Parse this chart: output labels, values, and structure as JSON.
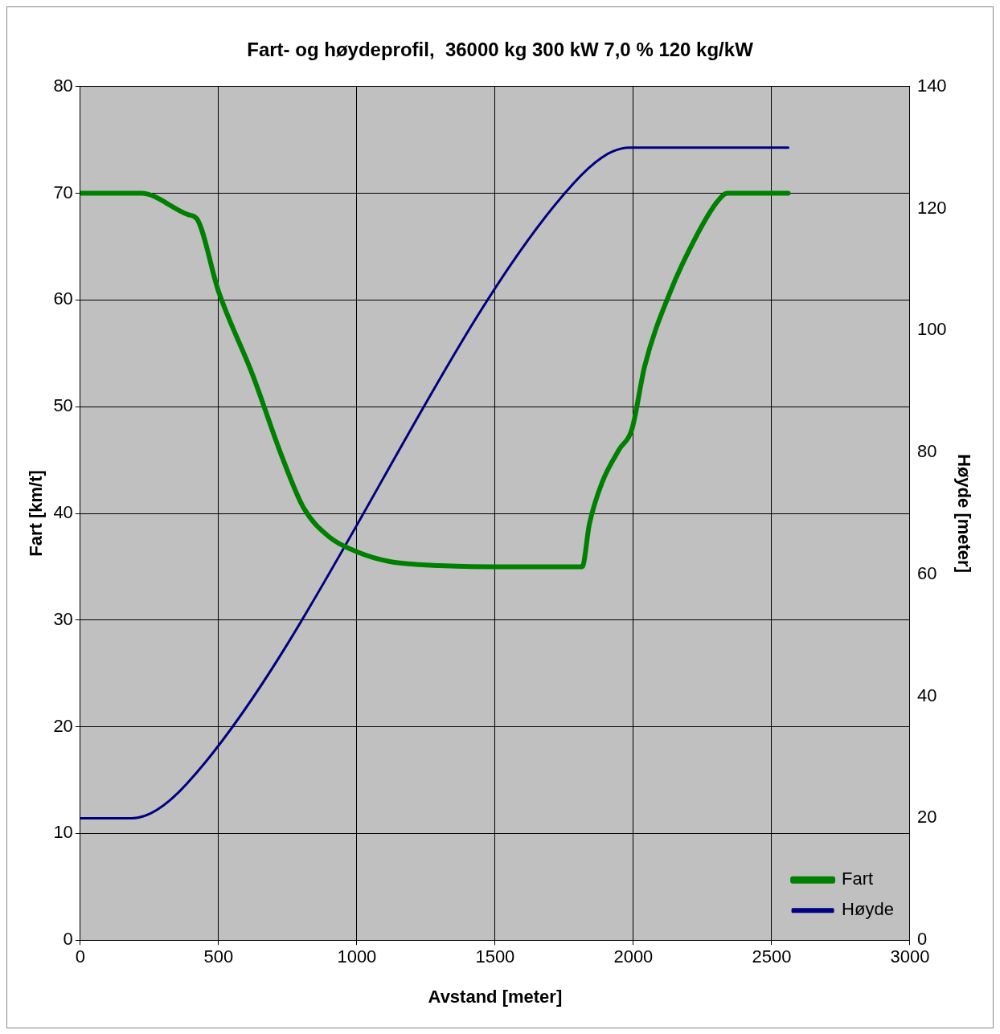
{
  "chart_data": {
    "type": "line",
    "title": "Fart- og høydeprofil,  36000 kg 300 kW 7,0 % 120 kg/kW",
    "xlabel": "Avstand [meter]",
    "ylabel": "Fart [km/t]",
    "y2label": "Høyde [meter]",
    "xlim": [
      0,
      3000
    ],
    "xticks": [
      0,
      500,
      1000,
      1500,
      2000,
      2500,
      3000
    ],
    "ylim": [
      0,
      80
    ],
    "yticks": [
      0,
      10,
      20,
      30,
      40,
      50,
      60,
      70,
      80
    ],
    "y2lim": [
      0,
      140
    ],
    "y2ticks": [
      0,
      20,
      40,
      60,
      80,
      100,
      120,
      140
    ],
    "grid": true,
    "legend": "bottom right",
    "marker": "none",
    "line_style": "solid",
    "series": [
      {
        "name": "Fart",
        "color": "#008000",
        "x": [
          0,
          220,
          390,
          422,
          500,
          623,
          731,
          808,
          900,
          1000,
          1116,
          1300,
          1500,
          1800,
          1815,
          1841,
          1887,
          1949,
          1995,
          2041,
          2134,
          2226,
          2303,
          2340,
          2560
        ],
        "values": [
          70,
          70,
          68,
          67.6,
          60.8,
          53,
          45.2,
          40.5,
          37.8,
          36.4,
          35.5,
          35.1,
          35,
          35,
          35,
          39,
          42.9,
          46,
          47.9,
          53.8,
          60.8,
          65.9,
          69.2,
          70,
          70
        ]
      },
      {
        "name": "Høyde",
        "color": "#000080",
        "axis": "y2",
        "x": [
          0,
          186,
          382,
          1785,
          1986,
          2560
        ],
        "values": [
          20,
          20,
          25.5,
          124.2,
          130,
          130
        ]
      }
    ]
  }
}
